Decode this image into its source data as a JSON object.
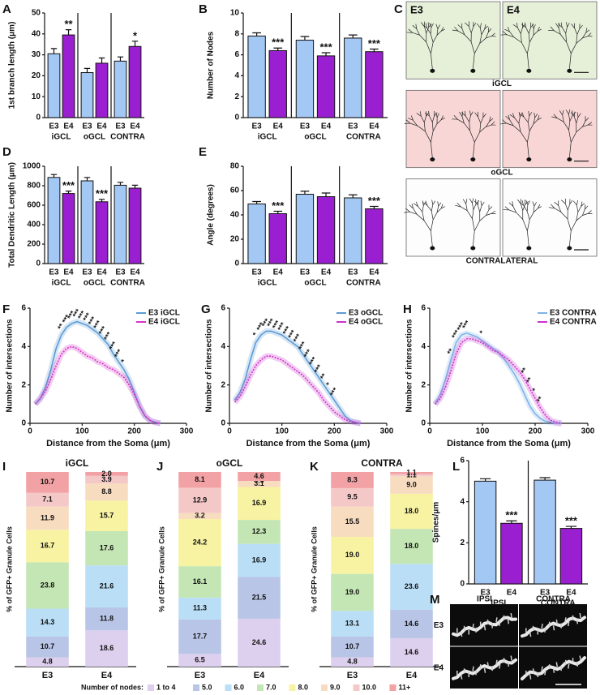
{
  "chart_data": [
    {
      "type": "bar",
      "panel": "A",
      "ylabel": "1st branch length (μm)",
      "ylim": [
        0,
        50
      ],
      "yticks": [
        0,
        10,
        20,
        30,
        40,
        50
      ],
      "categories": [
        "iGCL",
        "oGCL",
        "CONTRA"
      ],
      "series": [
        {
          "name": "E3",
          "color": "#a4c8f4",
          "values": [
            30.5,
            21.5,
            27
          ],
          "errors": [
            2.5,
            2,
            2
          ],
          "significance": [
            null,
            null,
            null
          ]
        },
        {
          "name": "E4",
          "color": "#9a1fd1",
          "values": [
            39.5,
            26,
            34
          ],
          "errors": [
            2.5,
            2.5,
            2.5
          ],
          "significance": [
            "**",
            null,
            "*"
          ]
        }
      ]
    },
    {
      "type": "bar",
      "panel": "B",
      "ylabel": "Number of Nodes",
      "ylim": [
        0,
        10
      ],
      "yticks": [
        0,
        2,
        4,
        6,
        8,
        10
      ],
      "categories": [
        "iGCL",
        "oGCL",
        "CONTRA"
      ],
      "series": [
        {
          "name": "E3",
          "color": "#a4c8f4",
          "values": [
            7.8,
            7.4,
            7.6
          ],
          "errors": [
            0.3,
            0.35,
            0.3
          ],
          "significance": [
            null,
            null,
            null
          ]
        },
        {
          "name": "E4",
          "color": "#9a1fd1",
          "values": [
            6.4,
            5.9,
            6.3
          ],
          "errors": [
            0.25,
            0.3,
            0.25
          ],
          "significance": [
            "***",
            "***",
            "***"
          ]
        }
      ]
    },
    {
      "type": "image",
      "panel": "C",
      "columns": [
        "E3",
        "E4"
      ],
      "rows": [
        "iGCL",
        "oGCL",
        "CONTRALATERAL"
      ]
    },
    {
      "type": "bar",
      "panel": "D",
      "ylabel": "Total Dendritic Length (μm)",
      "ylim": [
        0,
        1000
      ],
      "yticks": [
        0,
        200,
        400,
        600,
        800,
        1000
      ],
      "categories": [
        "iGCL",
        "oGCL",
        "CONTRA"
      ],
      "series": [
        {
          "name": "E3",
          "color": "#a4c8f4",
          "values": [
            885,
            850,
            805
          ],
          "errors": [
            30,
            35,
            30
          ],
          "significance": [
            null,
            null,
            null
          ]
        },
        {
          "name": "E4",
          "color": "#9a1fd1",
          "values": [
            720,
            635,
            775
          ],
          "errors": [
            25,
            25,
            30
          ],
          "significance": [
            "***",
            "***",
            null
          ]
        }
      ]
    },
    {
      "type": "bar",
      "panel": "E",
      "ylabel": "Angle (degrees)",
      "ylim": [
        0,
        80
      ],
      "yticks": [
        0,
        20,
        40,
        60,
        80
      ],
      "categories": [
        "iGCL",
        "oGCL",
        "CONTRA"
      ],
      "series": [
        {
          "name": "E3",
          "color": "#a4c8f4",
          "values": [
            49,
            57,
            54
          ],
          "errors": [
            2,
            2.5,
            2.5
          ],
          "significance": [
            null,
            null,
            null
          ]
        },
        {
          "name": "E4",
          "color": "#9a1fd1",
          "values": [
            41,
            55,
            45
          ],
          "errors": [
            2,
            3,
            2
          ],
          "significance": [
            "***",
            null,
            "***"
          ]
        }
      ]
    },
    {
      "type": "line",
      "panel": "F",
      "xlabel": "Distance from the Soma (μm)",
      "ylabel": "Number of intersections",
      "xlim": [
        0,
        300
      ],
      "xticks": [
        0,
        100,
        200,
        300
      ],
      "ylim": [
        0,
        6
      ],
      "yticks": [
        0,
        2,
        4,
        6
      ],
      "legend": "upper right",
      "x": [
        10,
        20,
        30,
        40,
        50,
        60,
        70,
        80,
        90,
        100,
        110,
        120,
        130,
        140,
        150,
        160,
        170,
        180,
        190,
        200,
        210,
        220,
        230,
        240,
        250
      ],
      "series": [
        {
          "name": "E3 iGCL",
          "color": "#5b9bd5",
          "values": [
            1.0,
            1.3,
            1.9,
            2.8,
            3.9,
            4.6,
            5.0,
            5.2,
            5.3,
            5.2,
            5.1,
            4.9,
            4.7,
            4.4,
            4.1,
            3.6,
            3.2,
            2.8,
            2.3,
            1.6,
            0.9,
            0.4,
            0.15,
            0.05,
            0
          ]
        },
        {
          "name": "E4 iGCL",
          "color": "#d633c8",
          "values": [
            1.0,
            1.3,
            1.7,
            2.3,
            3.0,
            3.6,
            3.9,
            4.0,
            3.9,
            3.7,
            3.5,
            3.4,
            3.2,
            3.1,
            2.9,
            2.8,
            2.6,
            2.4,
            2.0,
            1.5,
            0.9,
            0.4,
            0.15,
            0.05,
            0
          ]
        }
      ],
      "significance": [
        null,
        null,
        null,
        null,
        null,
        "**",
        "***",
        "***",
        "***",
        "***",
        "***",
        "***",
        "***",
        "***",
        "***",
        "***",
        "***",
        "*",
        null,
        null,
        null,
        null,
        null,
        null,
        null
      ]
    },
    {
      "type": "line",
      "panel": "G",
      "xlabel": "Distance from the Soma (μm)",
      "ylabel": "Number of intersections",
      "xlim": [
        0,
        300
      ],
      "xticks": [
        0,
        100,
        200,
        300
      ],
      "ylim": [
        0,
        6
      ],
      "yticks": [
        0,
        2,
        4,
        6
      ],
      "legend": "upper right",
      "x": [
        10,
        20,
        30,
        40,
        50,
        60,
        70,
        80,
        90,
        100,
        110,
        120,
        130,
        140,
        150,
        160,
        170,
        180,
        190,
        200,
        210,
        220,
        230,
        240,
        250
      ],
      "series": [
        {
          "name": "E3 oGCL",
          "color": "#5b9bd5",
          "values": [
            1.2,
            1.6,
            2.3,
            3.3,
            4.2,
            4.6,
            4.8,
            4.8,
            4.7,
            4.6,
            4.4,
            4.2,
            4.0,
            3.6,
            3.2,
            2.8,
            2.4,
            2.0,
            1.6,
            1.2,
            0.8,
            0.4,
            0.15,
            0.05,
            0
          ]
        },
        {
          "name": "E4 oGCL",
          "color": "#cc33cc",
          "values": [
            1.1,
            1.4,
            1.9,
            2.5,
            3.0,
            3.3,
            3.5,
            3.5,
            3.4,
            3.3,
            3.1,
            2.9,
            2.7,
            2.5,
            2.2,
            1.9,
            1.6,
            1.2,
            0.9,
            0.6,
            0.4,
            0.2,
            0.1,
            0.05,
            0
          ]
        }
      ],
      "significance": [
        null,
        null,
        null,
        null,
        "*",
        "***",
        "***",
        "***",
        "***",
        "***",
        "***",
        "***",
        "***",
        "***",
        "***",
        "***",
        "***",
        "**",
        "*",
        "***",
        null,
        null,
        null,
        null,
        null
      ]
    },
    {
      "type": "line",
      "panel": "H",
      "xlabel": "Distance from the Soma (μm)",
      "ylabel": "Number of intersections",
      "xlim": [
        0,
        300
      ],
      "xticks": [
        0,
        100,
        200,
        300
      ],
      "ylim": [
        0,
        6
      ],
      "yticks": [
        0,
        2,
        4,
        6
      ],
      "legend": "upper right",
      "x": [
        10,
        20,
        30,
        40,
        50,
        60,
        70,
        80,
        90,
        100,
        110,
        120,
        130,
        140,
        150,
        160,
        170,
        180,
        190,
        200,
        210,
        220,
        230,
        240,
        250
      ],
      "series": [
        {
          "name": "E3 CONTRA",
          "color": "#7fb3e8",
          "values": [
            1.0,
            1.5,
            2.3,
            3.3,
            4.2,
            4.6,
            4.7,
            4.6,
            4.5,
            4.3,
            4.1,
            3.9,
            3.7,
            3.4,
            3.0,
            2.6,
            2.1,
            1.5,
            0.9,
            0.5,
            0.25,
            0.1,
            0.05,
            0,
            0
          ]
        },
        {
          "name": "E4 CONTRA",
          "color": "#cc33cc",
          "values": [
            1.0,
            1.3,
            1.9,
            2.7,
            3.6,
            4.2,
            4.4,
            4.4,
            4.3,
            4.2,
            4.0,
            3.8,
            3.7,
            3.5,
            3.3,
            3.0,
            2.7,
            2.3,
            1.8,
            1.3,
            0.8,
            0.4,
            0.15,
            0.05,
            0
          ]
        }
      ],
      "significance": [
        null,
        null,
        null,
        "**",
        "***",
        "***",
        "***",
        null,
        null,
        "*",
        null,
        null,
        null,
        null,
        null,
        null,
        null,
        "**",
        "**",
        "*",
        "**",
        null,
        null,
        null,
        null
      ]
    },
    {
      "type": "stacked_bar",
      "panel": "I",
      "title": "iGCL",
      "ylabel": "% of GFP+ Granule Cells",
      "categories": [
        "E3",
        "E4"
      ],
      "series": [
        {
          "values": [
            4.8,
            18.6
          ],
          "value_labels": [
            "4.8",
            "18.6"
          ]
        },
        {
          "values": [
            10.7,
            11.8
          ],
          "value_labels": [
            "10.7",
            "11.8"
          ]
        },
        {
          "values": [
            14.3,
            21.6
          ],
          "value_labels": [
            "14.3",
            "21.6"
          ]
        },
        {
          "values": [
            23.8,
            17.6
          ],
          "value_labels": [
            "23.8",
            "17.6"
          ]
        },
        {
          "values": [
            16.7,
            15.7
          ],
          "value_labels": [
            "16.7",
            "15.7"
          ]
        },
        {
          "values": [
            11.9,
            8.8
          ],
          "value_labels": [
            "11.9",
            "8.8"
          ]
        },
        {
          "values": [
            7.1,
            3.9
          ],
          "value_labels": [
            "7.1",
            "3.9"
          ]
        },
        {
          "values": [
            10.7,
            2.0
          ],
          "value_labels": [
            "10.7",
            "2.0"
          ]
        }
      ]
    },
    {
      "type": "stacked_bar",
      "panel": "J",
      "title": "oGCL",
      "ylabel": "% of GFP+ Granule Cells",
      "categories": [
        "E3",
        "E4"
      ],
      "series": [
        {
          "values": [
            6.5,
            24.6
          ],
          "value_labels": [
            "6.5",
            "24.6"
          ]
        },
        {
          "values": [
            17.7,
            21.5
          ],
          "value_labels": [
            "17.7",
            "21.5"
          ]
        },
        {
          "values": [
            11.3,
            16.9
          ],
          "value_labels": [
            "11.3",
            "16.9"
          ]
        },
        {
          "values": [
            16.1,
            12.3
          ],
          "value_labels": [
            "16.1",
            "12.3"
          ]
        },
        {
          "values": [
            24.2,
            16.9
          ],
          "value_labels": [
            "24.2",
            "16.9"
          ]
        },
        {
          "values": [
            3.2,
            3.1
          ],
          "value_labels": [
            "3.2",
            "3.1"
          ]
        },
        {
          "values": [
            12.9,
            0.0
          ],
          "value_labels": [
            "12.9",
            "0.0"
          ]
        },
        {
          "values": [
            8.1,
            4.6
          ],
          "value_labels": [
            "8.1",
            "4.6"
          ]
        }
      ]
    },
    {
      "type": "stacked_bar",
      "panel": "K",
      "title": "CONTRA",
      "ylabel": "% of GFP+ Granule Cells",
      "categories": [
        "E3",
        "E4"
      ],
      "series": [
        {
          "values": [
            4.8,
            14.6
          ],
          "value_labels": [
            "4.8",
            "14.6"
          ]
        },
        {
          "values": [
            10.7,
            14.6
          ],
          "value_labels": [
            "10.7",
            "14.6"
          ]
        },
        {
          "values": [
            13.1,
            23.6
          ],
          "value_labels": [
            "13.1",
            "23.6"
          ]
        },
        {
          "values": [
            19.0,
            18.0
          ],
          "value_labels": [
            "19.0",
            "18.0"
          ]
        },
        {
          "values": [
            19.0,
            18.0
          ],
          "value_labels": [
            "19.0",
            "18.0"
          ]
        },
        {
          "values": [
            15.5,
            9.0
          ],
          "value_labels": [
            "15.5",
            "9.0"
          ]
        },
        {
          "values": [
            9.5,
            1.1
          ],
          "value_labels": [
            "9.5",
            "1.1"
          ]
        },
        {
          "values": [
            8.3,
            1.1
          ],
          "value_labels": [
            "8.3",
            "1.1"
          ]
        }
      ]
    },
    {
      "type": "bar",
      "panel": "L",
      "ylabel": "Spines/μm",
      "ylim": [
        0,
        6
      ],
      "yticks": [
        0,
        2,
        4,
        6
      ],
      "categories": [
        "IPSI",
        "CONTRA"
      ],
      "series": [
        {
          "name": "E3",
          "color": "#a4c8f4",
          "values": [
            5.0,
            5.05
          ],
          "errors": [
            0.12,
            0.12
          ],
          "significance": [
            null,
            null
          ]
        },
        {
          "name": "E4",
          "color": "#9a1fd1",
          "values": [
            2.95,
            2.7
          ],
          "errors": [
            0.12,
            0.1
          ],
          "significance": [
            "***",
            "***"
          ]
        }
      ]
    },
    {
      "type": "image",
      "panel": "M",
      "columns": [
        "IPSI",
        "CONTRA"
      ],
      "rows": [
        "E3",
        "E4"
      ]
    }
  ],
  "node_legend": {
    "title": "Number of nodes:",
    "items": [
      {
        "name": "1 to 4",
        "color": "#ddd0ee"
      },
      {
        "name": "5.0",
        "color": "#b9c5e6"
      },
      {
        "name": "6.0",
        "color": "#b9def6"
      },
      {
        "name": "7.0",
        "color": "#c4e6b4"
      },
      {
        "name": "8.0",
        "color": "#f7f3a2"
      },
      {
        "name": "9.0",
        "color": "#f8dcc0"
      },
      {
        "name": "10.0",
        "color": "#f5c8c8"
      },
      {
        "name": "11+",
        "color": "#f2a2a4"
      }
    ]
  }
}
